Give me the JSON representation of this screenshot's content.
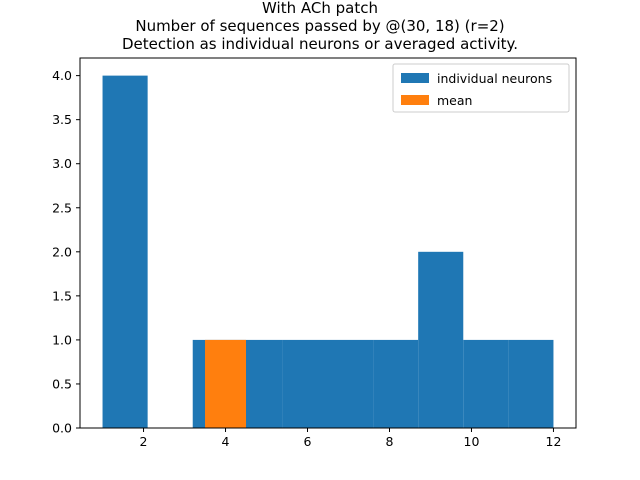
{
  "chart_data": {
    "type": "bar",
    "title_lines": [
      "With ACh patch",
      "Number of sequences passed by @(30, 18) (r=2)",
      "Detection as individual neurons or averaged activity."
    ],
    "xlabel": "",
    "ylabel": "",
    "xlim": [
      0.45,
      12.55
    ],
    "ylim": [
      0,
      4.2
    ],
    "xticks": [
      "2",
      "4",
      "6",
      "8",
      "10",
      "12"
    ],
    "yticks": [
      "0.0",
      "0.5",
      "1.0",
      "1.5",
      "2.0",
      "2.5",
      "3.0",
      "3.5",
      "4.0"
    ],
    "grid": false,
    "legend_position": "top-right",
    "series": [
      {
        "name": "individual neurons",
        "color": "#1f77b4",
        "bins": [
          {
            "x0": 1.0,
            "x1": 2.1,
            "value": 4
          },
          {
            "x0": 2.1,
            "x1": 3.2,
            "value": 0
          },
          {
            "x0": 3.2,
            "x1": 4.3,
            "value": 1
          },
          {
            "x0": 4.3,
            "x1": 5.4,
            "value": 1
          },
          {
            "x0": 5.4,
            "x1": 6.5,
            "value": 1
          },
          {
            "x0": 6.5,
            "x1": 7.6,
            "value": 1
          },
          {
            "x0": 7.6,
            "x1": 8.7,
            "value": 1
          },
          {
            "x0": 8.7,
            "x1": 9.8,
            "value": 2
          },
          {
            "x0": 9.8,
            "x1": 10.9,
            "value": 1
          },
          {
            "x0": 10.9,
            "x1": 12.0,
            "value": 1
          }
        ]
      },
      {
        "name": "mean",
        "color": "#ff7f0e",
        "bins": [
          {
            "x0": 3.5,
            "x1": 4.5,
            "value": 1
          }
        ]
      }
    ]
  }
}
